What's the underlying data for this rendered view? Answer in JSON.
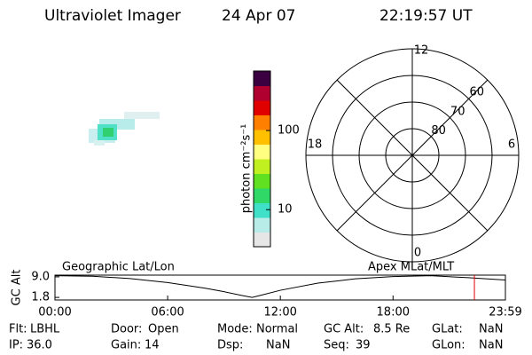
{
  "header": {
    "instrument": "Ultraviolet Imager",
    "date": "24 Apr 07",
    "time": "22:19:57 UT"
  },
  "colorbar": {
    "label": "photon cm⁻²s⁻¹",
    "log": true,
    "lim": [
      3.4,
      566
    ],
    "ticks": [
      10,
      100
    ],
    "colors": [
      "#e6e6e6",
      "#b8ece8",
      "#40e0c8",
      "#30d868",
      "#60e020",
      "#c0f020",
      "#ffff80",
      "#ffc000",
      "#ff8000",
      "#e00000",
      "#b00030",
      "#3a0040"
    ]
  },
  "polar": {
    "rlim": [
      90,
      50
    ],
    "lat_labels": [
      80,
      70,
      60
    ],
    "mlt_labels": {
      "top": "12",
      "right": "6",
      "bottom": "0",
      "left": "18"
    }
  },
  "chart_data": {
    "type": "line",
    "ylabel": "GC Alt",
    "left_label": "Geographic Lat/Lon",
    "right_label": "Apex MLat/MLT",
    "x": [
      0,
      2,
      4,
      6,
      8,
      9,
      10,
      10.5,
      11,
      12,
      14,
      16,
      18,
      20,
      22,
      23.98
    ],
    "values": [
      9.4,
      9.2,
      8.4,
      7.0,
      5.0,
      3.8,
      2.4,
      1.8,
      2.6,
      4.3,
      6.8,
      8.3,
      9.1,
      9.4,
      8.7,
      7.9
    ],
    "color": "#000000",
    "marker_x": 22.3325,
    "marker_color": "#e00000",
    "xlim": [
      0,
      23.983
    ],
    "ylim": [
      0.9,
      9.6
    ],
    "xticks": [
      {
        "value": 0,
        "label": "00:00"
      },
      {
        "value": 6,
        "label": "06:00"
      },
      {
        "value": 12,
        "label": "12:00"
      },
      {
        "value": 18,
        "label": "18:00"
      },
      {
        "value": 23.983,
        "label": "23:59"
      }
    ],
    "yticks": [
      {
        "value": 9,
        "label": "9.0"
      },
      {
        "value": 1.8,
        "label": "1.8"
      }
    ]
  },
  "info": [
    [
      {
        "label": "Flt:",
        "value": "LBHL"
      },
      {
        "label": "Door:",
        "value": "Open"
      },
      {
        "label": "Mode:",
        "value": "Normal"
      },
      {
        "label": "GC Alt:",
        "value": "8.5 Re"
      },
      {
        "label": "GLat:",
        "value": "NaN"
      }
    ],
    [
      {
        "label": "IP:",
        "value": "36.0"
      },
      {
        "label": "Gain:",
        "value": "14"
      },
      {
        "label": "Dsp:",
        "value": "NaN"
      },
      {
        "label": "Seq:",
        "value": "39"
      },
      {
        "label": "GLon:",
        "value": "NaN"
      }
    ]
  ]
}
